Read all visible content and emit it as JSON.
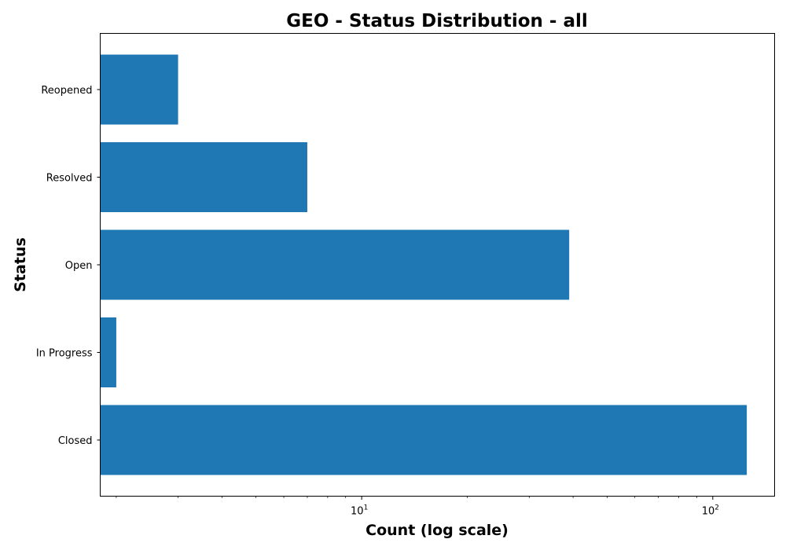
{
  "chart_data": {
    "type": "bar",
    "orientation": "horizontal",
    "title": "GEO - Status Distribution - all",
    "xlabel": "Count (log scale)",
    "ylabel": "Status",
    "x_scale": "log",
    "xlim": [
      1.8,
      150
    ],
    "categories": [
      "Closed",
      "In Progress",
      "Open",
      "Resolved",
      "Reopened"
    ],
    "values": [
      125,
      2,
      39,
      7,
      3
    ],
    "x_ticks": [
      {
        "value": 10,
        "base": "10",
        "exponent": "1"
      },
      {
        "value": 100,
        "base": "10",
        "exponent": "2"
      }
    ],
    "bar_color": "#1f77b4",
    "grid": false,
    "legend": "none"
  }
}
